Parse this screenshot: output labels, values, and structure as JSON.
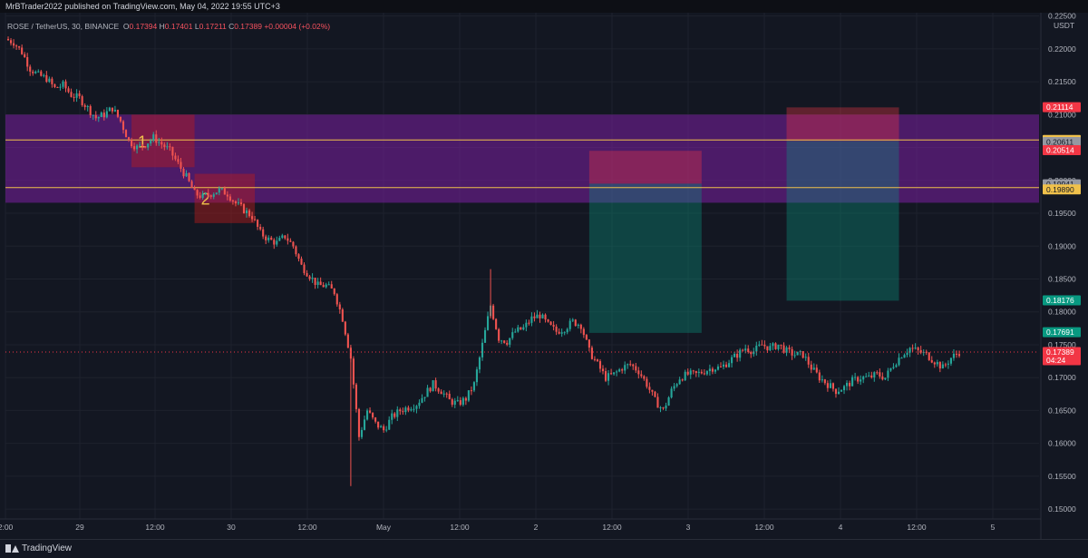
{
  "publisher": "MrBTrader2022 published on TradingView.com, May 04, 2022 19:55 UTC+3",
  "legend": {
    "symbol": "ROSE / TetherUS, 30, BINANCE",
    "o_label": "O",
    "o": "0.17394",
    "h_label": "H",
    "h": "0.17401",
    "l_label": "L",
    "l": "0.17211",
    "c_label": "C",
    "c": "0.17389",
    "change": "+0.00004 (+0.02%)"
  },
  "footer": {
    "brand": "TradingView"
  },
  "chart_data": {
    "type": "candlestick",
    "currency": "USDT",
    "y_range": [
      0.1485,
      0.2255
    ],
    "y_ticks": [
      "0.22500",
      "0.22000",
      "0.21500",
      "0.21000",
      "0.20500",
      "0.20000",
      "0.19500",
      "0.19000",
      "0.18500",
      "0.18000",
      "0.17500",
      "0.17000",
      "0.16500",
      "0.16000",
      "0.15500",
      "0.15000"
    ],
    "x_ticks": [
      "2:00",
      "29",
      "12:00",
      "30",
      "12:00",
      "May",
      "12:00",
      "2",
      "12:00",
      "3",
      "12:00",
      "4",
      "12:00",
      "5"
    ],
    "price_close_path": [
      [
        0,
        0.2215
      ],
      [
        3,
        0.221
      ],
      [
        6,
        0.2195
      ],
      [
        9,
        0.217
      ],
      [
        12,
        0.216
      ],
      [
        15,
        0.2155
      ],
      [
        18,
        0.214
      ],
      [
        21,
        0.2145
      ],
      [
        24,
        0.213
      ],
      [
        27,
        0.2125
      ],
      [
        30,
        0.211
      ],
      [
        33,
        0.2095
      ],
      [
        36,
        0.21
      ],
      [
        39,
        0.211
      ],
      [
        42,
        0.209
      ],
      [
        45,
        0.206
      ],
      [
        48,
        0.205
      ],
      [
        51,
        0.2055
      ],
      [
        54,
        0.2065
      ],
      [
        57,
        0.2055
      ],
      [
        60,
        0.2045
      ],
      [
        63,
        0.2025
      ],
      [
        66,
        0.2005
      ],
      [
        69,
        0.198
      ],
      [
        72,
        0.1975
      ],
      [
        75,
        0.198
      ],
      [
        78,
        0.1985
      ],
      [
        81,
        0.198
      ],
      [
        84,
        0.1965
      ],
      [
        87,
        0.1955
      ],
      [
        90,
        0.1945
      ],
      [
        93,
        0.192
      ],
      [
        96,
        0.191
      ],
      [
        99,
        0.1905
      ],
      [
        102,
        0.1915
      ],
      [
        105,
        0.19
      ],
      [
        108,
        0.187
      ],
      [
        111,
        0.1855
      ],
      [
        114,
        0.184
      ],
      [
        117,
        0.184
      ],
      [
        120,
        0.183
      ],
      [
        123,
        0.179
      ],
      [
        126,
        0.173
      ],
      [
        129,
        0.161
      ],
      [
        132,
        0.165
      ],
      [
        135,
        0.163
      ],
      [
        138,
        0.162
      ],
      [
        141,
        0.164
      ],
      [
        144,
        0.165
      ],
      [
        147,
        0.1655
      ],
      [
        150,
        0.166
      ],
      [
        153,
        0.1675
      ],
      [
        156,
        0.169
      ],
      [
        159,
        0.168
      ],
      [
        162,
        0.1665
      ],
      [
        165,
        0.166
      ],
      [
        168,
        0.1668
      ],
      [
        171,
        0.169
      ],
      [
        174,
        0.175
      ],
      [
        177,
        0.181
      ],
      [
        180,
        0.176
      ],
      [
        183,
        0.1755
      ],
      [
        186,
        0.177
      ],
      [
        189,
        0.1775
      ],
      [
        192,
        0.179
      ],
      [
        195,
        0.1795
      ],
      [
        198,
        0.178
      ],
      [
        201,
        0.177
      ],
      [
        204,
        0.1775
      ],
      [
        207,
        0.1785
      ],
      [
        210,
        0.178
      ],
      [
        213,
        0.174
      ],
      [
        216,
        0.172
      ],
      [
        219,
        0.17
      ],
      [
        222,
        0.1705
      ],
      [
        225,
        0.1715
      ],
      [
        228,
        0.172
      ],
      [
        231,
        0.171
      ],
      [
        234,
        0.169
      ],
      [
        237,
        0.1665
      ],
      [
        240,
        0.165
      ],
      [
        243,
        0.168
      ],
      [
        246,
        0.17
      ],
      [
        249,
        0.1705
      ],
      [
        252,
        0.1705
      ],
      [
        255,
        0.171
      ],
      [
        258,
        0.1715
      ],
      [
        261,
        0.1715
      ],
      [
        264,
        0.1725
      ],
      [
        267,
        0.1735
      ],
      [
        270,
        0.1745
      ],
      [
        273,
        0.174
      ],
      [
        276,
        0.175
      ],
      [
        279,
        0.1745
      ],
      [
        282,
        0.175
      ],
      [
        285,
        0.174
      ],
      [
        288,
        0.1735
      ],
      [
        291,
        0.1735
      ],
      [
        294,
        0.1715
      ],
      [
        297,
        0.17
      ],
      [
        300,
        0.169
      ],
      [
        303,
        0.168
      ],
      [
        306,
        0.1685
      ],
      [
        309,
        0.1695
      ],
      [
        312,
        0.17
      ],
      [
        315,
        0.17
      ],
      [
        318,
        0.1705
      ],
      [
        321,
        0.17
      ],
      [
        324,
        0.172
      ],
      [
        327,
        0.1735
      ],
      [
        330,
        0.1745
      ],
      [
        333,
        0.174
      ],
      [
        336,
        0.1735
      ],
      [
        339,
        0.1725
      ],
      [
        342,
        0.1715
      ],
      [
        345,
        0.173
      ],
      [
        348,
        0.1739
      ]
    ],
    "zones": [
      {
        "name": "resistance-zone",
        "from": 0.1966,
        "to": 0.21,
        "color": "#7b1fa2"
      }
    ],
    "horizontal_lines": [
      {
        "price": 0.20615,
        "color": "#f0c14b"
      },
      {
        "price": 0.1989,
        "color": "#f0c14b"
      }
    ],
    "boxes": [
      {
        "label": "1",
        "x0": 46,
        "x1": 69,
        "top": 0.21,
        "bottom": 0.202,
        "color": "#b71c1c"
      },
      {
        "label": "2",
        "x0": 69,
        "x1": 91,
        "top": 0.201,
        "bottom": 0.1935,
        "color": "#b71c1c"
      }
    ],
    "positions": [
      {
        "x0": 213,
        "x1": 254,
        "stop": 0.2045,
        "entry": 0.1995,
        "target": 0.1768
      },
      {
        "x0": 285,
        "x1": 326,
        "stop": 0.2111,
        "entry": 0.206,
        "target": 0.1817
      }
    ],
    "price_labels": [
      {
        "text": "0.21114",
        "price": 0.21114,
        "bg": "#f23645",
        "fg": "#ffffff"
      },
      {
        "text": "0.20615",
        "price": 0.20615,
        "bg": "#f0c14b",
        "fg": "#131722"
      },
      {
        "text": "0.20611",
        "price": 0.20611,
        "bg": "#9598a1",
        "fg": "#131722",
        "offset": 1
      },
      {
        "text": "0.20514",
        "price": 0.20514,
        "bg": "#f23645",
        "fg": "#ffffff",
        "offset": 2
      },
      {
        "text": "0.19941",
        "price": 0.19941,
        "bg": "#9598a1",
        "fg": "#131722"
      },
      {
        "text": "0.19890",
        "price": 0.1989,
        "bg": "#f0c14b",
        "fg": "#131722",
        "offset": 1
      },
      {
        "text": "0.18176",
        "price": 0.18176,
        "bg": "#089981",
        "fg": "#ffffff"
      },
      {
        "text": "0.17691",
        "price": 0.17691,
        "bg": "#089981",
        "fg": "#ffffff"
      },
      {
        "text": "0.17389",
        "price": 0.17389,
        "bg": "#f23645",
        "fg": "#ffffff",
        "sub": "04:24"
      }
    ],
    "current_price": 0.17389,
    "colors": {
      "up": "#26a69a",
      "down": "#ef5350",
      "grid": "#1e222d",
      "text": "#b2b5be"
    }
  }
}
